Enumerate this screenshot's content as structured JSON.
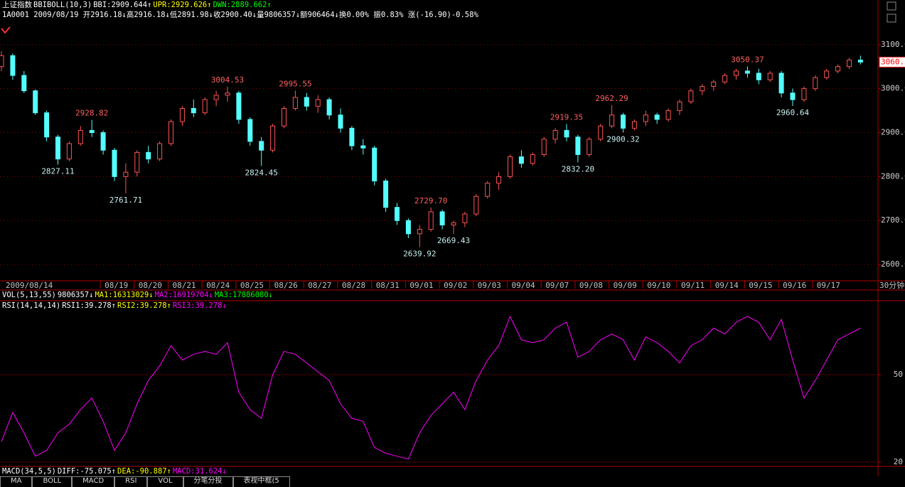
{
  "header": {
    "name": "上证指数"
  },
  "chart_data": [
    {
      "type": "candlestick",
      "title": "BBIBOLL(10,3)",
      "indicators": [
        {
          "text": "BBI:2909.644↑",
          "color": "#ffffff"
        },
        {
          "text": "UPR:2929.626↑",
          "color": "#ffff00"
        },
        {
          "text": "DWN:2889.662↑",
          "color": "#00ff00"
        }
      ],
      "info": "1A0001 2009/08/19 开2916.18↓高2916.18↓低2891.98↓收2900.40↓量9806357↓额906464↓换0.00% 振0.83% 涨(-16.90)-0.58%",
      "period": "30分钟",
      "categories": [
        "2009/08/14",
        null,
        null,
        null,
        null,
        null,
        null,
        null,
        null,
        "08/19",
        null,
        null,
        "08/20",
        null,
        null,
        "08/21",
        null,
        null,
        "08/24",
        null,
        null,
        "08/25",
        null,
        null,
        "08/26",
        null,
        null,
        "08/27",
        null,
        null,
        "08/28",
        null,
        null,
        "08/31",
        null,
        null,
        "09/01",
        null,
        null,
        "09/02",
        null,
        null,
        "09/03",
        null,
        null,
        "09/04",
        null,
        null,
        "09/07",
        null,
        null,
        "09/08",
        null,
        null,
        "09/09",
        null,
        null,
        "09/10",
        null,
        null,
        "09/11",
        null,
        null,
        "09/14",
        null,
        null,
        "09/15",
        null,
        null,
        "09/16",
        null,
        null,
        "09/17",
        null,
        null,
        null,
        null
      ],
      "open": [
        3050,
        3075,
        3030,
        2995,
        2945,
        2890,
        2840,
        2875,
        2905,
        2900,
        2860,
        2800,
        2810,
        2855,
        2840,
        2875,
        2925,
        2955,
        2945,
        2975,
        2985,
        2990,
        2930,
        2880,
        2860,
        2915,
        2955,
        2980,
        2960,
        2975,
        2940,
        2910,
        2870,
        2865,
        2790,
        2730,
        2700,
        2670,
        2680,
        2720,
        2690,
        2695,
        2715,
        2755,
        2785,
        2800,
        2845,
        2830,
        2850,
        2885,
        2905,
        2890,
        2850,
        2885,
        2915,
        2940,
        2910,
        2925,
        2940,
        2930,
        2950,
        2970,
        2995,
        3005,
        3015,
        3030,
        3040,
        3035,
        3020,
        3035,
        2990,
        2975,
        3000,
        3025,
        3040,
        3050,
        3065
      ],
      "high": [
        3085,
        3080,
        3040,
        2998,
        2950,
        2895,
        2880,
        2915,
        2928.82,
        2905,
        2865,
        2830,
        2860,
        2870,
        2880,
        2930,
        2960,
        2975,
        2980,
        2995,
        3004.53,
        2995,
        2935,
        2890,
        2920,
        2960,
        2995.55,
        2990,
        2985,
        2980,
        2955,
        2915,
        2885,
        2870,
        2795,
        2740,
        2705,
        2690,
        2729.7,
        2725,
        2700,
        2720,
        2760,
        2790,
        2810,
        2850,
        2860,
        2855,
        2890,
        2910,
        2919.35,
        2895,
        2890,
        2920,
        2962.29,
        2945,
        2930,
        2950,
        2945,
        2955,
        2975,
        3000,
        3010,
        3020,
        3035,
        3045,
        3050.37,
        3045,
        3040,
        3040,
        3000,
        3005,
        3030,
        3045,
        3055,
        3070,
        3075
      ],
      "low": [
        3040,
        3020,
        2990,
        2940,
        2880,
        2827.11,
        2835,
        2870,
        2890,
        2850,
        2790,
        2761.71,
        2800,
        2830,
        2835,
        2870,
        2915,
        2935,
        2940,
        2960,
        2970,
        2920,
        2870,
        2824.45,
        2855,
        2910,
        2950,
        2950,
        2945,
        2930,
        2900,
        2860,
        2850,
        2780,
        2720,
        2690,
        2660,
        2639.92,
        2675,
        2680,
        2669.43,
        2685,
        2710,
        2750,
        2770,
        2795,
        2820,
        2825,
        2845,
        2875,
        2880,
        2832.2,
        2845,
        2880,
        2910,
        2900.32,
        2905,
        2915,
        2920,
        2925,
        2940,
        2965,
        2985,
        2995,
        3010,
        3020,
        3025,
        3010,
        3015,
        2980,
        2960.64,
        2970,
        2995,
        3020,
        3035,
        3045,
        3055
      ],
      "close": [
        3075,
        3030,
        2995,
        2945,
        2890,
        2840,
        2875,
        2905,
        2900,
        2860,
        2800,
        2810,
        2855,
        2840,
        2875,
        2925,
        2955,
        2945,
        2975,
        2985,
        2990,
        2930,
        2880,
        2860,
        2915,
        2955,
        2980,
        2960,
        2975,
        2940,
        2910,
        2870,
        2865,
        2790,
        2730,
        2700,
        2670,
        2680,
        2720,
        2690,
        2695,
        2715,
        2755,
        2785,
        2800,
        2845,
        2830,
        2850,
        2885,
        2905,
        2890,
        2850,
        2885,
        2915,
        2940,
        2910,
        2925,
        2940,
        2930,
        2950,
        2970,
        2995,
        3005,
        3015,
        3030,
        3040,
        3035,
        3020,
        3035,
        2990,
        2975,
        3000,
        3025,
        3040,
        3050,
        3065,
        3060.3
      ],
      "extremes": [
        2827.11,
        2928.82,
        2761.71,
        3004.53,
        2824.45,
        2995.55,
        2639.92,
        {
          "value": 2729.7,
          "label": "2729.70"
        },
        2669.43,
        2919.35,
        {
          "value": 2832.2,
          "label": "2832.20"
        },
        2962.29,
        2900.32,
        3050.37,
        2960.64
      ],
      "up_color": "#ff5454",
      "down_color": "#54ffff",
      "high_label_color": "#ff6060",
      "low_label_color": "#c8f0f0",
      "ylim": [
        2563,
        3153
      ],
      "yticks": [
        {
          "value": 2600,
          "label": "2600.0"
        },
        {
          "value": 2700,
          "label": "2700.0"
        },
        {
          "value": 2800,
          "label": "2800.0"
        },
        {
          "value": 2900,
          "label": "2900.0"
        },
        {
          "value": 3000,
          "label": "3000.0"
        },
        {
          "value": 3100,
          "label": "3100.0"
        }
      ],
      "grid": true
    },
    {
      "type": "line",
      "title": "RSI(14,14,14)",
      "indicators": [
        {
          "text": "RSI1:39.278↑",
          "color": "#ffffff"
        },
        {
          "text": "RSI2:39.278↑",
          "color": "#ffff00"
        },
        {
          "text": "RSI3:39.278↓",
          "color": "#ff00ff"
        }
      ],
      "values": [
        27,
        37,
        30,
        22,
        24,
        30,
        33,
        38,
        42,
        34,
        24,
        30,
        40,
        48,
        53,
        60,
        55,
        57,
        58,
        57,
        61,
        44,
        38,
        35,
        50,
        58,
        57,
        54,
        51,
        48,
        40,
        35,
        34,
        25,
        23,
        22,
        21,
        30,
        36,
        40,
        44,
        38,
        48,
        55,
        60,
        70,
        62,
        61,
        62,
        66,
        68,
        56,
        58,
        62,
        64,
        62,
        55,
        63,
        61,
        58,
        54,
        60,
        62,
        66,
        64,
        68,
        70,
        68,
        62,
        69,
        55,
        42,
        48,
        55,
        62,
        64,
        66
      ],
      "color": "#ff00ff",
      "ylim": [
        18.5,
        75.4
      ],
      "yticks": [
        50,
        20
      ],
      "grid": true
    }
  ],
  "volume_legend": {
    "title": "VOL(5,13,55)",
    "indicators": [
      {
        "text": "9806357↓",
        "color": "#ffffff"
      },
      {
        "text": "MA1:16313029↓",
        "color": "#ffff00"
      },
      {
        "text": "MA2:16919704↓",
        "color": "#ff00ff"
      },
      {
        "text": "MA3:17886080↓",
        "color": "#00ff00"
      }
    ]
  },
  "macd_legend": {
    "title": "MACD(34,5,5)",
    "indicators": [
      {
        "text": "DIFF:-75.075↑",
        "color": "#ffffff"
      },
      {
        "text": "DEA:-90.887↑",
        "color": "#ffff00"
      },
      {
        "text": "MACD:31.624↓",
        "color": "#ff00ff"
      }
    ]
  },
  "tabs": [
    "MA",
    "BOLL",
    "MACD",
    "RSI",
    "VOL",
    "分笔分投",
    "表视中框(5"
  ]
}
